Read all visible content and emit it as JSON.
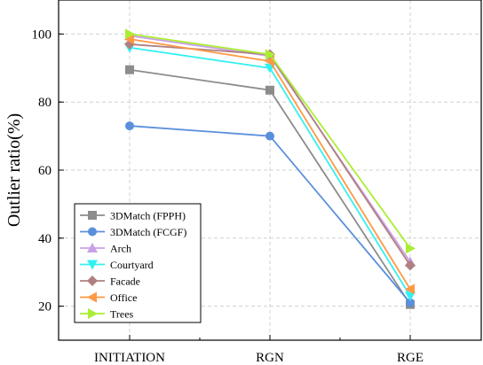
{
  "chart_data": {
    "type": "line",
    "title": "",
    "xlabel": "",
    "ylabel": "Outlier ratio(%)",
    "categories": [
      "INITIATION",
      "RGN",
      "RGE"
    ],
    "ylim": [
      10,
      110
    ],
    "yticks": [
      20,
      40,
      60,
      80,
      100
    ],
    "grid": true,
    "legend_position": "bottom-left",
    "series": [
      {
        "name": "3DMatch (FPPH)",
        "values": [
          89.5,
          83.5,
          20.5
        ],
        "color": "#8c8c8c",
        "marker": "square"
      },
      {
        "name": "3DMatch (FCGF)",
        "values": [
          73.0,
          70.0,
          21.0
        ],
        "color": "#5b8fdc",
        "marker": "circle"
      },
      {
        "name": "Arch",
        "values": [
          99.5,
          93.5,
          33.0
        ],
        "color": "#c9a0e6",
        "marker": "triangle-up"
      },
      {
        "name": "Courtyard",
        "values": [
          96.0,
          90.0,
          23.0
        ],
        "color": "#33f0f0",
        "marker": "triangle-down"
      },
      {
        "name": "Facade",
        "values": [
          97.0,
          94.0,
          32.0
        ],
        "color": "#b08080",
        "marker": "diamond"
      },
      {
        "name": "Office",
        "values": [
          98.5,
          92.0,
          25.0
        ],
        "color": "#ff9944",
        "marker": "triangle-left"
      },
      {
        "name": "Trees",
        "values": [
          100.0,
          94.0,
          37.0
        ],
        "color": "#aaee33",
        "marker": "triangle-right"
      }
    ]
  }
}
